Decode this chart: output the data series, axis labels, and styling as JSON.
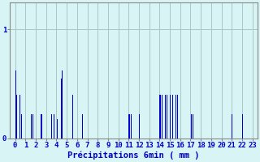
{
  "bar_color": "#0000cc",
  "bg_color": "#d8f4f4",
  "grid_color": "#a8c8c8",
  "axis_color": "#888888",
  "text_color": "#0000cc",
  "xlabel": "Précipitations 6min ( mm )",
  "ylim": [
    0,
    1.25
  ],
  "yticks": [
    0,
    1
  ],
  "ytick_labels": [
    "0",
    "1"
  ],
  "xlim": [
    -0.5,
    23.5
  ],
  "tick_fontsize": 6.5,
  "xlabel_fontsize": 7.5,
  "bar_data": [
    [
      0.05,
      0.62
    ],
    [
      0.15,
      0.4
    ],
    [
      0.45,
      0.4
    ],
    [
      0.65,
      0.22
    ],
    [
      1.55,
      0.22
    ],
    [
      1.75,
      0.22
    ],
    [
      2.55,
      0.22
    ],
    [
      3.55,
      0.22
    ],
    [
      3.75,
      0.22
    ],
    [
      4.05,
      0.18
    ],
    [
      4.45,
      0.55
    ],
    [
      4.55,
      0.62
    ],
    [
      5.55,
      0.4
    ],
    [
      6.55,
      0.22
    ],
    [
      11.05,
      0.22
    ],
    [
      11.25,
      0.22
    ],
    [
      12.05,
      0.22
    ],
    [
      14.05,
      0.4
    ],
    [
      14.25,
      0.4
    ],
    [
      14.55,
      0.4
    ],
    [
      14.75,
      0.4
    ],
    [
      15.05,
      0.4
    ],
    [
      15.25,
      0.4
    ],
    [
      15.55,
      0.4
    ],
    [
      15.75,
      0.4
    ],
    [
      17.05,
      0.22
    ],
    [
      17.25,
      0.22
    ],
    [
      21.05,
      0.22
    ],
    [
      22.05,
      0.22
    ]
  ]
}
